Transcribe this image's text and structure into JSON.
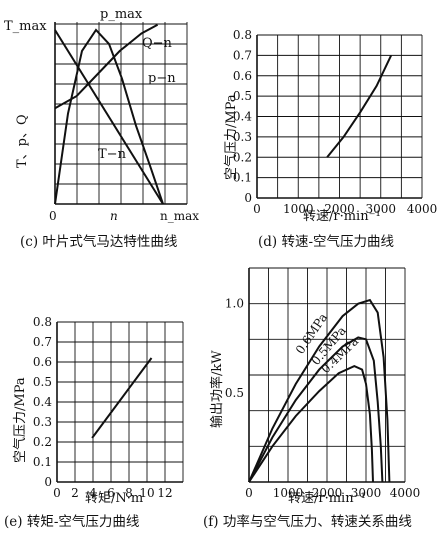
{
  "chart_data": [
    {
      "panel": "c",
      "type": "line",
      "caption": "(c) 叶片式气马达特性曲线",
      "ylabel": "T、p、Q",
      "x_ticks": [
        "0",
        "n",
        "n_max"
      ],
      "y_tick_top": "T_max",
      "top_label": "p_max",
      "curve_labels": [
        "Q−n",
        "p−n",
        "T−n"
      ],
      "series": [
        {
          "name": "T−n",
          "x": [
            0,
            1
          ],
          "y": [
            1,
            0
          ]
        },
        {
          "name": "p−n",
          "x": [
            0,
            0.12,
            0.25,
            0.38,
            0.5,
            0.62,
            0.75,
            0.88,
            1
          ],
          "y": [
            0,
            0.52,
            0.88,
            1.0,
            0.92,
            0.72,
            0.45,
            0.22,
            0
          ]
        },
        {
          "name": "Q−n",
          "x": [
            0,
            0.2,
            0.4,
            0.6,
            0.8,
            0.95
          ],
          "y": [
            0.55,
            0.62,
            0.75,
            0.88,
            0.98,
            1.03
          ]
        }
      ]
    },
    {
      "panel": "d",
      "type": "line",
      "caption": "(d) 转速-空气压力曲线",
      "xlabel": "转速/r·min⁻¹",
      "ylabel": "空气压力/MPa",
      "xlim": [
        0,
        4000
      ],
      "ylim": [
        0,
        0.8
      ],
      "x_ticks": [
        "0",
        "1000",
        "2000",
        "3000",
        "4000"
      ],
      "y_ticks": [
        "0",
        "0.1",
        "0.2",
        "0.3",
        "0.4",
        "0.5",
        "0.6",
        "0.7",
        "0.8"
      ],
      "series": [
        {
          "x": [
            1700,
            2100,
            2500,
            2900,
            3250
          ],
          "y": [
            0.2,
            0.3,
            0.42,
            0.55,
            0.7
          ]
        }
      ]
    },
    {
      "panel": "e",
      "type": "line",
      "caption": "(e) 转矩-空气压力曲线",
      "xlabel": "转矩/N·m",
      "ylabel": "空气压力/MPa",
      "xlim": [
        0,
        14
      ],
      "ylim": [
        0,
        0.8
      ],
      "x_ticks": [
        "0",
        "2",
        "4",
        "6",
        "8",
        "10",
        "12"
      ],
      "y_ticks": [
        "0",
        "0.1",
        "0.2",
        "0.3",
        "0.4",
        "0.5",
        "0.6",
        "0.7",
        "0.8"
      ],
      "series": [
        {
          "x": [
            3.9,
            10.5
          ],
          "y": [
            0.22,
            0.62
          ]
        }
      ]
    },
    {
      "panel": "f",
      "type": "line",
      "caption": "(f) 功率与空气压力、转速关系曲线",
      "xlabel": "转速/r·min⁻¹",
      "ylabel": "输出功率/kW",
      "xlim": [
        0,
        4000
      ],
      "ylim": [
        0,
        1.2
      ],
      "x_ticks": [
        "0",
        "1000",
        "2000",
        "3000",
        "4000"
      ],
      "y_ticks": [
        "0.5",
        "1.0"
      ],
      "series": [
        {
          "name": "0.6MPa",
          "x": [
            0,
            600,
            1200,
            1800,
            2400,
            2800,
            3100,
            3300,
            3450,
            3550,
            3600
          ],
          "y": [
            0,
            0.3,
            0.55,
            0.76,
            0.93,
            1.0,
            1.02,
            0.95,
            0.7,
            0.35,
            0
          ]
        },
        {
          "name": "0.5MPa",
          "x": [
            0,
            600,
            1200,
            1800,
            2400,
            2800,
            3000,
            3200,
            3300,
            3380,
            3420
          ],
          "y": [
            0,
            0.25,
            0.46,
            0.63,
            0.76,
            0.81,
            0.8,
            0.68,
            0.45,
            0.2,
            0
          ]
        },
        {
          "name": "0.4MPa",
          "x": [
            0,
            600,
            1200,
            1800,
            2300,
            2700,
            2900,
            3000,
            3100,
            3150,
            3180
          ],
          "y": [
            0,
            0.2,
            0.37,
            0.51,
            0.61,
            0.65,
            0.63,
            0.55,
            0.38,
            0.18,
            0
          ]
        }
      ]
    }
  ]
}
